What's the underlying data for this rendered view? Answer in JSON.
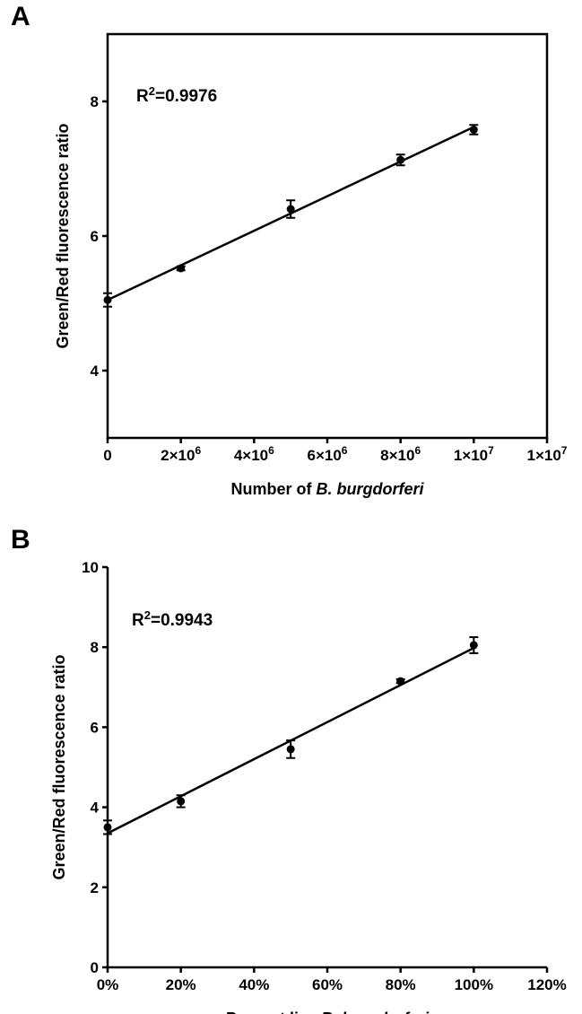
{
  "chart_data": [
    {
      "type": "scatter",
      "panel_label": "A",
      "annotation": {
        "base": "R",
        "sup": "2",
        "rest": "=0.9976"
      },
      "ylabel": "Green/Red fluorescence ratio",
      "xlabel": {
        "prefix": "Number of ",
        "italic": "B. burgdorferi"
      },
      "xlim": [
        0,
        12000000
      ],
      "ylim": [
        3.0,
        9.0
      ],
      "x_ticks": [
        {
          "value": 0,
          "label": "0"
        },
        {
          "value": 2000000,
          "mantissa": "2×10",
          "exp": "6"
        },
        {
          "value": 4000000,
          "mantissa": "4×10",
          "exp": "6"
        },
        {
          "value": 6000000,
          "mantissa": "6×10",
          "exp": "6"
        },
        {
          "value": 8000000,
          "mantissa": "8×10",
          "exp": "6"
        },
        {
          "value": 10000000,
          "mantissa": "1×10",
          "exp": "7"
        },
        {
          "value": 12000000,
          "mantissa": "1×10",
          "exp": "7"
        }
      ],
      "y_ticks": [
        {
          "value": 4,
          "label": "4"
        },
        {
          "value": 6,
          "label": "6"
        },
        {
          "value": 8,
          "label": "8"
        }
      ],
      "x": [
        0,
        2000000,
        5000000,
        8000000,
        10000000
      ],
      "y": [
        5.05,
        5.52,
        6.4,
        7.13,
        7.58
      ],
      "error": [
        0.1,
        0.03,
        0.13,
        0.08,
        0.07
      ],
      "fit": {
        "x": [
          0,
          10000000
        ],
        "y": [
          5.05,
          7.62
        ]
      }
    },
    {
      "type": "scatter",
      "panel_label": "B",
      "annotation": {
        "base": "R",
        "sup": "2",
        "rest": "=0.9943"
      },
      "ylabel": "Green/Red fluorescence ratio",
      "xlabel": {
        "prefix": "Percent live ",
        "italic": "B. burgdorferi"
      },
      "xlim": [
        0,
        120
      ],
      "ylim": [
        0,
        10
      ],
      "x_ticks": [
        {
          "value": 0,
          "label": "0%"
        },
        {
          "value": 20,
          "label": "20%"
        },
        {
          "value": 40,
          "label": "40%"
        },
        {
          "value": 60,
          "label": "60%"
        },
        {
          "value": 80,
          "label": "80%"
        },
        {
          "value": 100,
          "label": "100%"
        },
        {
          "value": 120,
          "label": "120%"
        }
      ],
      "y_ticks": [
        {
          "value": 0,
          "label": "0"
        },
        {
          "value": 2,
          "label": "2"
        },
        {
          "value": 4,
          "label": "4"
        },
        {
          "value": 6,
          "label": "6"
        },
        {
          "value": 8,
          "label": "8"
        },
        {
          "value": 10,
          "label": "10"
        }
      ],
      "x": [
        0,
        20,
        50,
        80,
        100
      ],
      "y": [
        3.5,
        4.15,
        5.45,
        7.15,
        8.05
      ],
      "error": [
        0.17,
        0.15,
        0.22,
        0.05,
        0.2
      ],
      "fit": {
        "x": [
          0,
          100
        ],
        "y": [
          3.35,
          7.98
        ]
      }
    }
  ]
}
